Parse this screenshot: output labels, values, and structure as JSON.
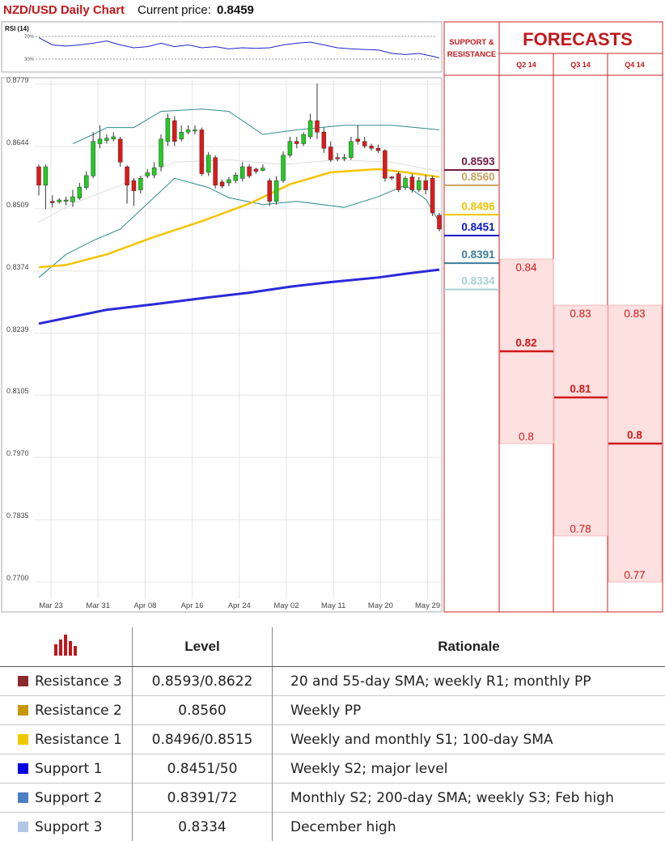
{
  "header": {
    "title": "NZD/USD Daily Chart",
    "price_label": "Current price:",
    "price_value": "0.8459"
  },
  "rsi": {
    "label": "RSI (14)",
    "upper": "70%",
    "lower": "30%"
  },
  "panel": {
    "sr_title_1": "SUPPORT &",
    "sr_title_2": "RESISTANCE",
    "forecasts_title": "FORECASTS"
  },
  "chart_data": {
    "type": "candlestick",
    "title": "NZD/USD Daily Chart",
    "y_ticks": [
      "0.8779",
      "0.8644",
      "0.8509",
      "0.8374",
      "0.8239",
      "0.8105",
      "0.7970",
      "0.7835",
      "0.7700"
    ],
    "ylim": [
      0.77,
      0.8779
    ],
    "x_ticks": [
      "Mar 23",
      "Mar 31",
      "Apr 08",
      "Apr 16",
      "Apr 24",
      "May 02",
      "May 11",
      "May 20",
      "May 29"
    ],
    "grid": true,
    "candles": [
      [
        0.86,
        0.856,
        0.8605,
        0.8538
      ],
      [
        0.856,
        0.86,
        0.8605,
        0.8508
      ],
      [
        0.8525,
        0.8522,
        0.8538,
        0.8512
      ],
      [
        0.8524,
        0.8528,
        0.8532,
        0.852
      ],
      [
        0.8525,
        0.8528,
        0.8535,
        0.8516
      ],
      [
        0.8524,
        0.8535,
        0.855,
        0.8513
      ],
      [
        0.8532,
        0.8556,
        0.8565,
        0.8528
      ],
      [
        0.8555,
        0.8581,
        0.859,
        0.855
      ],
      [
        0.858,
        0.8655,
        0.8675,
        0.8575
      ],
      [
        0.865,
        0.866,
        0.869,
        0.864
      ],
      [
        0.8657,
        0.8662,
        0.867,
        0.865
      ],
      [
        0.866,
        0.8665,
        0.8675,
        0.8655
      ],
      [
        0.866,
        0.861,
        0.8665,
        0.86
      ],
      [
        0.86,
        0.856,
        0.8603,
        0.852
      ],
      [
        0.857,
        0.8548,
        0.8575,
        0.8515
      ],
      [
        0.855,
        0.8575,
        0.858,
        0.8542
      ],
      [
        0.858,
        0.8587,
        0.8595,
        0.8575
      ],
      [
        0.8582,
        0.8598,
        0.861,
        0.8575
      ],
      [
        0.86,
        0.866,
        0.867,
        0.859
      ],
      [
        0.8655,
        0.8705,
        0.8715,
        0.8645
      ],
      [
        0.87,
        0.8655,
        0.871,
        0.8645
      ],
      [
        0.866,
        0.8675,
        0.869,
        0.8655
      ],
      [
        0.8675,
        0.868,
        0.869,
        0.867
      ],
      [
        0.8678,
        0.868,
        0.869,
        0.867
      ],
      [
        0.868,
        0.8585,
        0.8685,
        0.858
      ],
      [
        0.8588,
        0.8625,
        0.8632,
        0.858
      ],
      [
        0.862,
        0.856,
        0.8625,
        0.8553
      ],
      [
        0.8567,
        0.8558,
        0.8572,
        0.8553
      ],
      [
        0.8565,
        0.8572,
        0.8578,
        0.8558
      ],
      [
        0.857,
        0.8582,
        0.8588,
        0.8565
      ],
      [
        0.8575,
        0.86,
        0.861,
        0.8568
      ],
      [
        0.86,
        0.858,
        0.8605,
        0.8575
      ],
      [
        0.8595,
        0.859,
        0.8598,
        0.8585
      ],
      [
        0.8592,
        0.8597,
        0.8605,
        0.859
      ],
      [
        0.857,
        0.8525,
        0.8575,
        0.8515
      ],
      [
        0.8525,
        0.857,
        0.858,
        0.8518
      ],
      [
        0.857,
        0.8625,
        0.8633,
        0.8565
      ],
      [
        0.8625,
        0.8655,
        0.8665,
        0.862
      ],
      [
        0.8655,
        0.865,
        0.8665,
        0.864
      ],
      [
        0.865,
        0.867,
        0.8675,
        0.8645
      ],
      [
        0.8665,
        0.87,
        0.8715,
        0.866
      ],
      [
        0.87,
        0.8675,
        0.878,
        0.866
      ],
      [
        0.8675,
        0.864,
        0.8685,
        0.863
      ],
      [
        0.8643,
        0.8615,
        0.8655,
        0.861
      ],
      [
        0.862,
        0.8618,
        0.863,
        0.8612
      ],
      [
        0.862,
        0.862,
        0.8628,
        0.8612
      ],
      [
        0.862,
        0.8655,
        0.8665,
        0.8615
      ],
      [
        0.866,
        0.8655,
        0.869,
        0.8648
      ],
      [
        0.8655,
        0.8645,
        0.8665,
        0.864
      ],
      [
        0.8645,
        0.864,
        0.865,
        0.8635
      ],
      [
        0.864,
        0.8635,
        0.8648,
        0.863
      ],
      [
        0.8635,
        0.8575,
        0.8638,
        0.8568
      ],
      [
        0.8578,
        0.8577,
        0.858,
        0.8571
      ],
      [
        0.8585,
        0.855,
        0.859,
        0.8545
      ],
      [
        0.8555,
        0.8575,
        0.858,
        0.855
      ],
      [
        0.8578,
        0.855,
        0.8585,
        0.8544
      ],
      [
        0.855,
        0.857,
        0.8578,
        0.8545
      ],
      [
        0.857,
        0.855,
        0.8582,
        0.854
      ],
      [
        0.8575,
        0.85,
        0.858,
        0.8493
      ],
      [
        0.8495,
        0.8465,
        0.85,
        0.846
      ]
    ],
    "sma_100": [
      [
        0,
        0.8382
      ],
      [
        4,
        0.8387
      ],
      [
        10,
        0.841
      ],
      [
        17,
        0.8448
      ],
      [
        24,
        0.8482
      ],
      [
        31,
        0.852
      ],
      [
        37,
        0.8562
      ],
      [
        43,
        0.8588
      ],
      [
        50,
        0.8595
      ],
      [
        54,
        0.8588
      ],
      [
        59,
        0.8578
      ]
    ],
    "sma_200": [
      [
        0,
        0.826
      ],
      [
        5,
        0.8275
      ],
      [
        10,
        0.829
      ],
      [
        17,
        0.8302
      ],
      [
        24,
        0.8315
      ],
      [
        31,
        0.8327
      ],
      [
        37,
        0.834
      ],
      [
        43,
        0.835
      ],
      [
        50,
        0.836
      ],
      [
        54,
        0.8368
      ],
      [
        59,
        0.8377
      ]
    ],
    "bollinger_upper": [
      [
        5,
        0.865
      ],
      [
        8,
        0.867
      ],
      [
        10,
        0.8685
      ],
      [
        14,
        0.8685
      ],
      [
        18,
        0.872
      ],
      [
        24,
        0.8725
      ],
      [
        28,
        0.872
      ],
      [
        33,
        0.867
      ],
      [
        38,
        0.868
      ],
      [
        45,
        0.869
      ],
      [
        52,
        0.869
      ],
      [
        59,
        0.868
      ]
    ],
    "bollinger_lower": [
      [
        0,
        0.836
      ],
      [
        4,
        0.841
      ],
      [
        8,
        0.844
      ],
      [
        12,
        0.8465
      ],
      [
        16,
        0.852
      ],
      [
        20,
        0.8575
      ],
      [
        25,
        0.8555
      ],
      [
        28,
        0.8533
      ],
      [
        33,
        0.8518
      ],
      [
        38,
        0.8525
      ],
      [
        45,
        0.8512
      ],
      [
        50,
        0.8535
      ],
      [
        54,
        0.856
      ],
      [
        57,
        0.853
      ],
      [
        59,
        0.848
      ]
    ],
    "bollinger_mid": [
      [
        0,
        0.848
      ],
      [
        5,
        0.852
      ],
      [
        12,
        0.856
      ],
      [
        20,
        0.861
      ],
      [
        28,
        0.8615
      ],
      [
        36,
        0.8605
      ],
      [
        44,
        0.8615
      ],
      [
        52,
        0.861
      ],
      [
        59,
        0.859
      ]
    ],
    "rsi_values": [
      [
        0,
        68
      ],
      [
        2,
        55
      ],
      [
        4,
        53
      ],
      [
        6,
        55
      ],
      [
        8,
        58
      ],
      [
        10,
        62
      ],
      [
        12,
        55
      ],
      [
        14,
        50
      ],
      [
        16,
        52
      ],
      [
        18,
        58
      ],
      [
        20,
        52
      ],
      [
        22,
        55
      ],
      [
        24,
        50
      ],
      [
        26,
        52
      ],
      [
        28,
        48
      ],
      [
        30,
        50
      ],
      [
        32,
        49
      ],
      [
        34,
        50
      ],
      [
        36,
        55
      ],
      [
        38,
        58
      ],
      [
        40,
        60
      ],
      [
        42,
        55
      ],
      [
        44,
        50
      ],
      [
        46,
        48
      ],
      [
        48,
        47
      ],
      [
        50,
        46
      ],
      [
        52,
        40
      ],
      [
        54,
        38
      ],
      [
        56,
        40
      ],
      [
        58,
        35
      ],
      [
        59,
        32
      ]
    ]
  },
  "sr_levels": [
    {
      "value": "0.8593",
      "level": 0.8593,
      "color": "#6e1b3e"
    },
    {
      "value": "0.8560",
      "level": 0.856,
      "color": "#c8a060"
    },
    {
      "value": "0.8496",
      "level": 0.8496,
      "color": "#f4c400"
    },
    {
      "value": "0.8451",
      "level": 0.8451,
      "color": "#0a14c8"
    },
    {
      "value": "0.8391",
      "level": 0.8391,
      "color": "#3a7c9c"
    },
    {
      "value": "0.8334",
      "level": 0.8334,
      "color": "#a8d0d4"
    }
  ],
  "forecasts": [
    {
      "quarter": "Q2 14",
      "high": "0.84",
      "mid": "0.82",
      "low": "0.8",
      "high_v": 0.84,
      "mid_v": 0.82,
      "low_v": 0.8
    },
    {
      "quarter": "Q3 14",
      "high": "0.83",
      "mid": "0.81",
      "low": "0.78",
      "high_v": 0.83,
      "mid_v": 0.81,
      "low_v": 0.78
    },
    {
      "quarter": "Q4 14",
      "high": "0.83",
      "mid": "0.8",
      "low": "0.77",
      "high_v": 0.83,
      "mid_v": 0.8,
      "low_v": 0.77
    }
  ],
  "table": {
    "col_level": "Level",
    "col_rationale": "Rationale",
    "rows": [
      {
        "name": "Resistance 3",
        "level": "0.8593/0.8622",
        "rationale": "20 and 55-day SMA; weekly R1; monthly PP",
        "color": "#8b2a2a"
      },
      {
        "name": "Resistance 2",
        "level": "0.8560",
        "rationale": "Weekly PP",
        "color": "#c8960c"
      },
      {
        "name": "Resistance 1",
        "level": "0.8496/0.8515",
        "rationale": "Weekly and monthly S1; 100-day SMA",
        "color": "#f0c800"
      },
      {
        "name": "Support 1",
        "level": "0.8451/50",
        "rationale": "Weekly S2; major level",
        "color": "#0000e0"
      },
      {
        "name": "Support 2",
        "level": "0.8391/72",
        "rationale": "Monthly S2; 200-day SMA; weekly S3; Feb high",
        "color": "#4a7fc0"
      },
      {
        "name": "Support 3",
        "level": "0.8334",
        "rationale": "December high",
        "color": "#b4c8e6"
      }
    ]
  }
}
